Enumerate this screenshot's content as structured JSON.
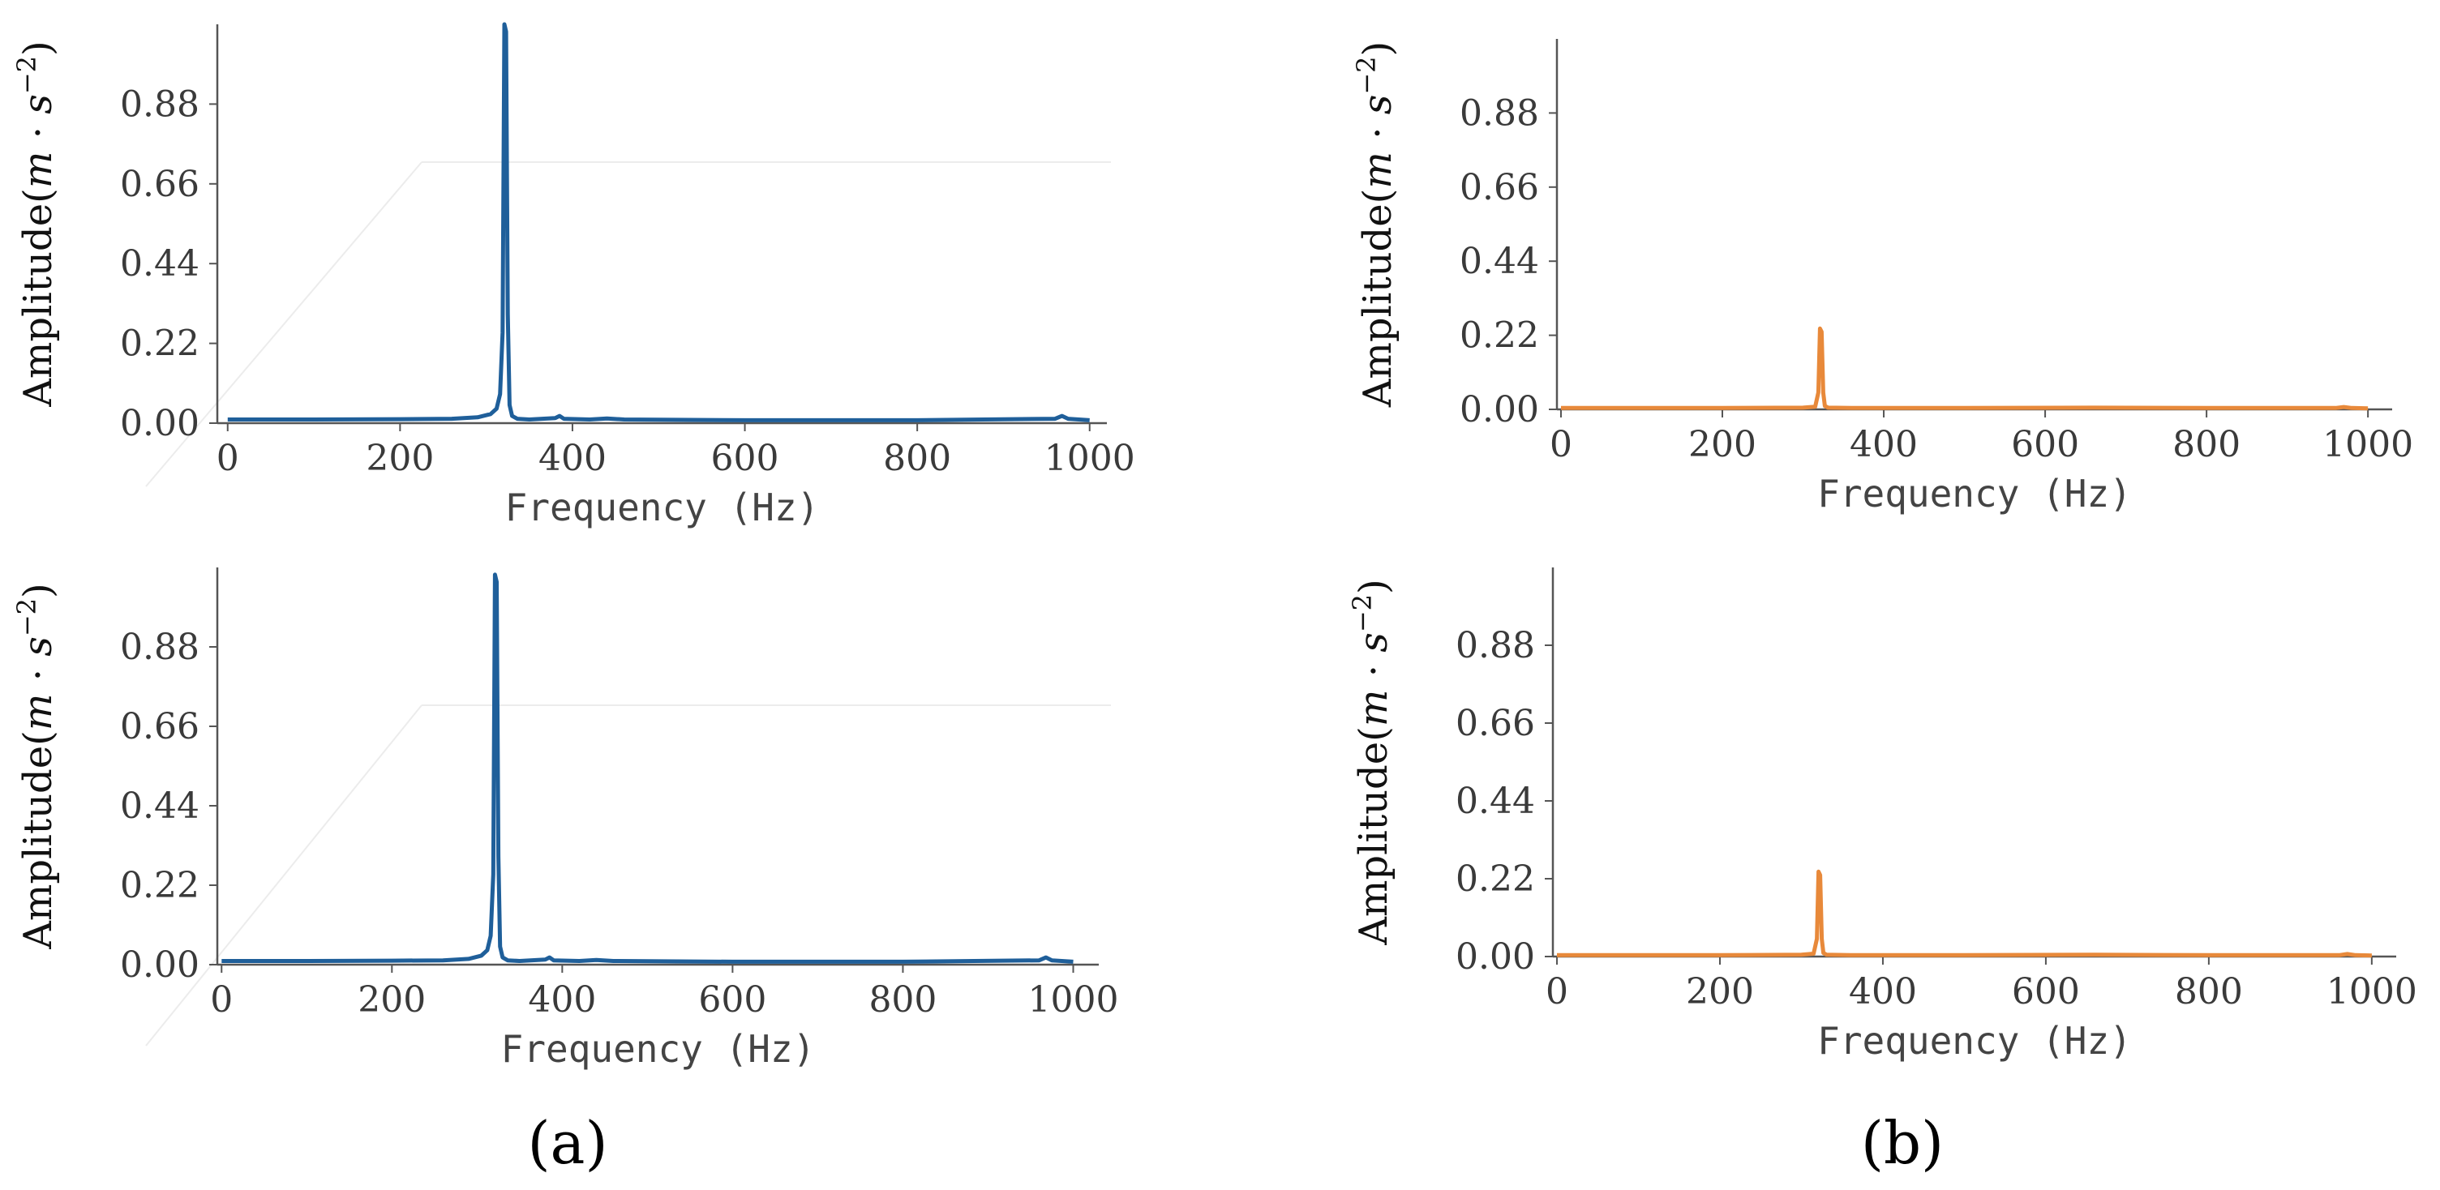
{
  "chart_data": [
    {
      "type": "line",
      "panel": "a",
      "xlabel": "Frequency (Hz)",
      "ylabel": "Amplitude(m·s⁻²)",
      "xlim": [
        -12,
        1020
      ],
      "ylim": [
        0,
        1.1
      ],
      "x_ticks": [
        "0",
        "200",
        "400",
        "600",
        "800",
        "1000"
      ],
      "y_ticks": [
        "0.00",
        "0.22",
        "0.44",
        "0.66",
        "0.88"
      ],
      "grid": false,
      "series": [
        {
          "color": "#1f5f9a",
          "x": [
            0,
            100,
            200,
            260,
            290,
            305,
            312,
            316,
            319,
            321,
            323,
            325,
            327,
            330,
            336,
            350,
            380,
            385,
            390,
            420,
            440,
            460,
            600,
            800,
            960,
            968,
            975,
            1000
          ],
          "y": [
            0.01,
            0.01,
            0.011,
            0.012,
            0.016,
            0.025,
            0.04,
            0.08,
            0.25,
            1.1,
            1.08,
            0.3,
            0.05,
            0.02,
            0.012,
            0.01,
            0.014,
            0.02,
            0.012,
            0.01,
            0.013,
            0.01,
            0.008,
            0.008,
            0.012,
            0.02,
            0.012,
            0.008
          ]
        }
      ]
    },
    {
      "type": "line",
      "panel": "a",
      "xlabel": "Frequency (Hz)",
      "ylabel": "Amplitude(m·s⁻²)",
      "xlim": [
        -5,
        1030
      ],
      "ylim": [
        0,
        1.1
      ],
      "x_ticks": [
        "0",
        "200",
        "400",
        "600",
        "800",
        "1000"
      ],
      "y_ticks": [
        "0.00",
        "0.22",
        "0.44",
        "0.66",
        "0.88"
      ],
      "grid": false,
      "series": [
        {
          "color": "#1f5f9a",
          "x": [
            0,
            100,
            200,
            260,
            290,
            305,
            312,
            316,
            319,
            321,
            323,
            325,
            327,
            330,
            336,
            350,
            380,
            385,
            390,
            420,
            440,
            460,
            600,
            800,
            960,
            968,
            975,
            1000
          ],
          "y": [
            0.01,
            0.01,
            0.011,
            0.012,
            0.016,
            0.025,
            0.04,
            0.08,
            0.25,
            1.08,
            1.06,
            0.3,
            0.05,
            0.02,
            0.012,
            0.01,
            0.014,
            0.02,
            0.012,
            0.01,
            0.013,
            0.01,
            0.008,
            0.008,
            0.012,
            0.02,
            0.012,
            0.008
          ]
        }
      ]
    },
    {
      "type": "line",
      "panel": "b",
      "xlabel": "Frequency (Hz)",
      "ylabel": "Amplitude(m·s⁻²)",
      "xlim": [
        -5,
        1030
      ],
      "ylim": [
        0,
        1.1
      ],
      "x_ticks": [
        "0",
        "200",
        "400",
        "600",
        "800",
        "1000"
      ],
      "y_ticks": [
        "0.00",
        "0.22",
        "0.44",
        "0.66",
        "0.88"
      ],
      "grid": false,
      "series": [
        {
          "color": "#e8893a",
          "x": [
            0,
            100,
            200,
            300,
            315,
            319,
            321,
            323,
            325,
            327,
            331,
            360,
            500,
            660,
            800,
            960,
            970,
            980,
            1000
          ],
          "y": [
            0.004,
            0.004,
            0.004,
            0.005,
            0.008,
            0.05,
            0.24,
            0.23,
            0.05,
            0.01,
            0.005,
            0.004,
            0.004,
            0.005,
            0.004,
            0.004,
            0.007,
            0.004,
            0.003
          ]
        }
      ]
    },
    {
      "type": "line",
      "panel": "b",
      "xlabel": "Frequency (Hz)",
      "ylabel": "Amplitude(m·s⁻²)",
      "xlim": [
        -5,
        1030
      ],
      "ylim": [
        0,
        1.1
      ],
      "x_ticks": [
        "0",
        "200",
        "400",
        "600",
        "800",
        "1000"
      ],
      "y_ticks": [
        "0.00",
        "0.22",
        "0.44",
        "0.66",
        "0.88"
      ],
      "grid": false,
      "series": [
        {
          "color": "#e8893a",
          "x": [
            0,
            100,
            200,
            300,
            315,
            319,
            321,
            323,
            325,
            327,
            331,
            360,
            500,
            660,
            800,
            960,
            970,
            980,
            1000
          ],
          "y": [
            0.004,
            0.004,
            0.004,
            0.005,
            0.008,
            0.05,
            0.24,
            0.23,
            0.05,
            0.01,
            0.005,
            0.004,
            0.004,
            0.005,
            0.004,
            0.004,
            0.007,
            0.004,
            0.003
          ]
        }
      ]
    }
  ],
  "panel_labels": {
    "a": "(a)",
    "b": "(b)"
  },
  "ylabel_parts": {
    "prefix": "Amplitude",
    "open": "(",
    "m": "m",
    "dot": " · ",
    "s": "s",
    "exp": "−2",
    "close": ")"
  }
}
